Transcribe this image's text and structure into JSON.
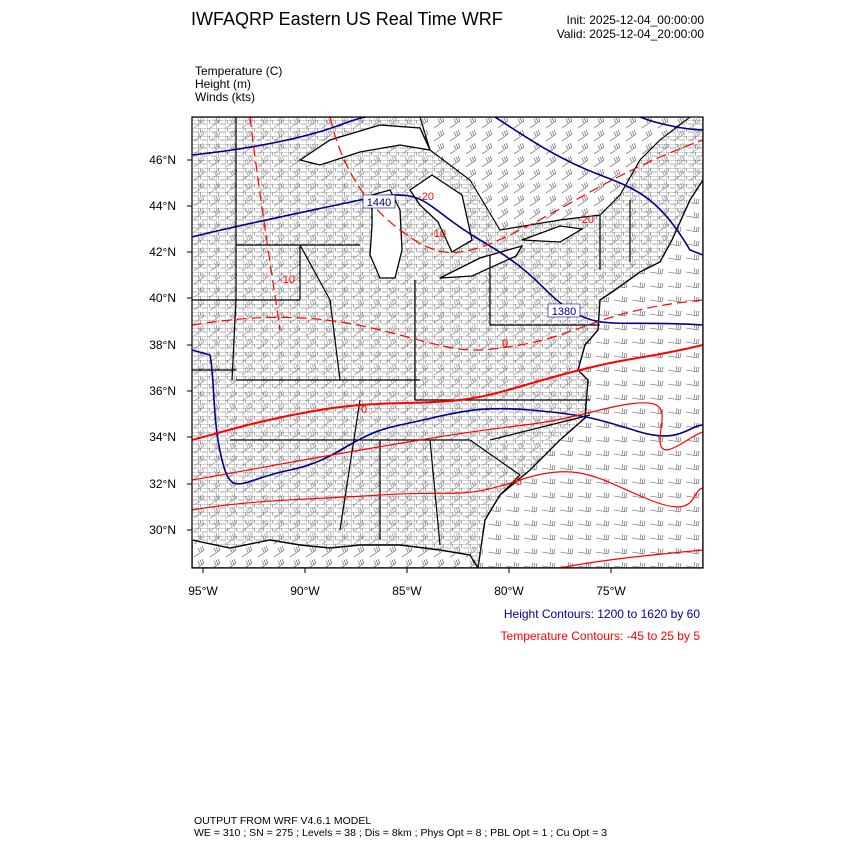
{
  "header": {
    "title": "IWFAQRP Eastern US Real Time WRF",
    "init": "Init: 2025-12-04_00:00:00",
    "valid": "Valid: 2025-12-04_20:00:00"
  },
  "fields": [
    "Temperature   (C)",
    "Height   (m)",
    "Winds   (kts)"
  ],
  "map": {
    "lat_labels": [
      "46°N",
      "44°N",
      "42°N",
      "40°N",
      "38°N",
      "36°N",
      "34°N",
      "32°N",
      "30°N"
    ],
    "lon_labels": [
      "95°W",
      "90°W",
      "85°W",
      "80°W",
      "75°W"
    ],
    "height_contour_labels": [
      "1440",
      "1380"
    ],
    "temperature_contour_labels": [
      "-20",
      "-20",
      "-10",
      "-10",
      "0",
      "0",
      "5"
    ],
    "colors": {
      "height": "#00008b",
      "temperature": "#ff0000",
      "boundaries": "#000000",
      "wind_barbs": "#555555"
    }
  },
  "legend": {
    "height": "Height Contours: 1200 to 1620 by 60",
    "temperature": "Temperature Contours: -45 to 25 by 5"
  },
  "footer": {
    "line1": "OUTPUT FROM WRF V4.6.1 MODEL",
    "line2": "WE = 310 ; SN = 275 ; Levels = 38 ; Dis = 8km ; Phys Opt = 8 ; PBL Opt = 1 ; Cu Opt = 3"
  }
}
